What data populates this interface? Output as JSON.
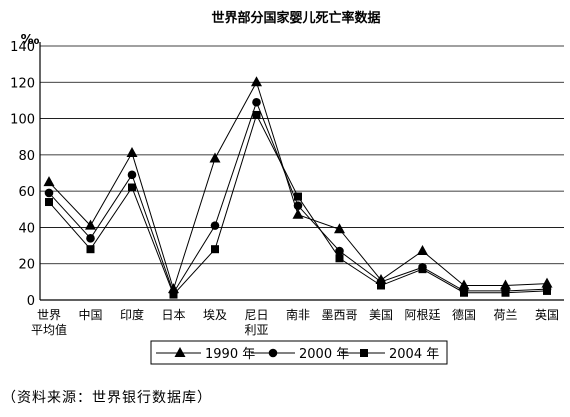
{
  "chart_data": {
    "type": "line",
    "title": "世界部分国家婴儿死亡率数据",
    "ylabel": "‰",
    "xlabel": "",
    "ylim": [
      0,
      140
    ],
    "yticks": [
      0,
      20,
      40,
      60,
      80,
      100,
      120,
      140
    ],
    "grid": true,
    "legend_position": "bottom",
    "categories": [
      [
        "世界",
        "平均值"
      ],
      [
        "中国"
      ],
      [
        "印度"
      ],
      [
        "日本"
      ],
      [
        "埃及"
      ],
      [
        "尼日",
        "利亚"
      ],
      [
        "南非"
      ],
      [
        "墨西哥"
      ],
      [
        "美国"
      ],
      [
        "阿根廷"
      ],
      [
        "德国"
      ],
      [
        "荷兰"
      ],
      [
        "英国"
      ]
    ],
    "series": [
      {
        "name": "1990 年",
        "marker": "triangle",
        "values": [
          65,
          41,
          81,
          6,
          78,
          120,
          47,
          39,
          11,
          27,
          8,
          8,
          9
        ]
      },
      {
        "name": "2000 年",
        "marker": "circle",
        "values": [
          59,
          34,
          69,
          4,
          41,
          109,
          52,
          27,
          10,
          18,
          5,
          5,
          6
        ]
      },
      {
        "name": "2004 年",
        "marker": "square",
        "values": [
          54,
          28,
          62,
          3,
          28,
          102,
          57,
          23,
          8,
          17,
          4,
          4,
          5
        ]
      }
    ]
  },
  "source": "（资料来源：世界银行数据库）",
  "colors": {
    "ink": "#000000",
    "background": "#ffffff"
  }
}
